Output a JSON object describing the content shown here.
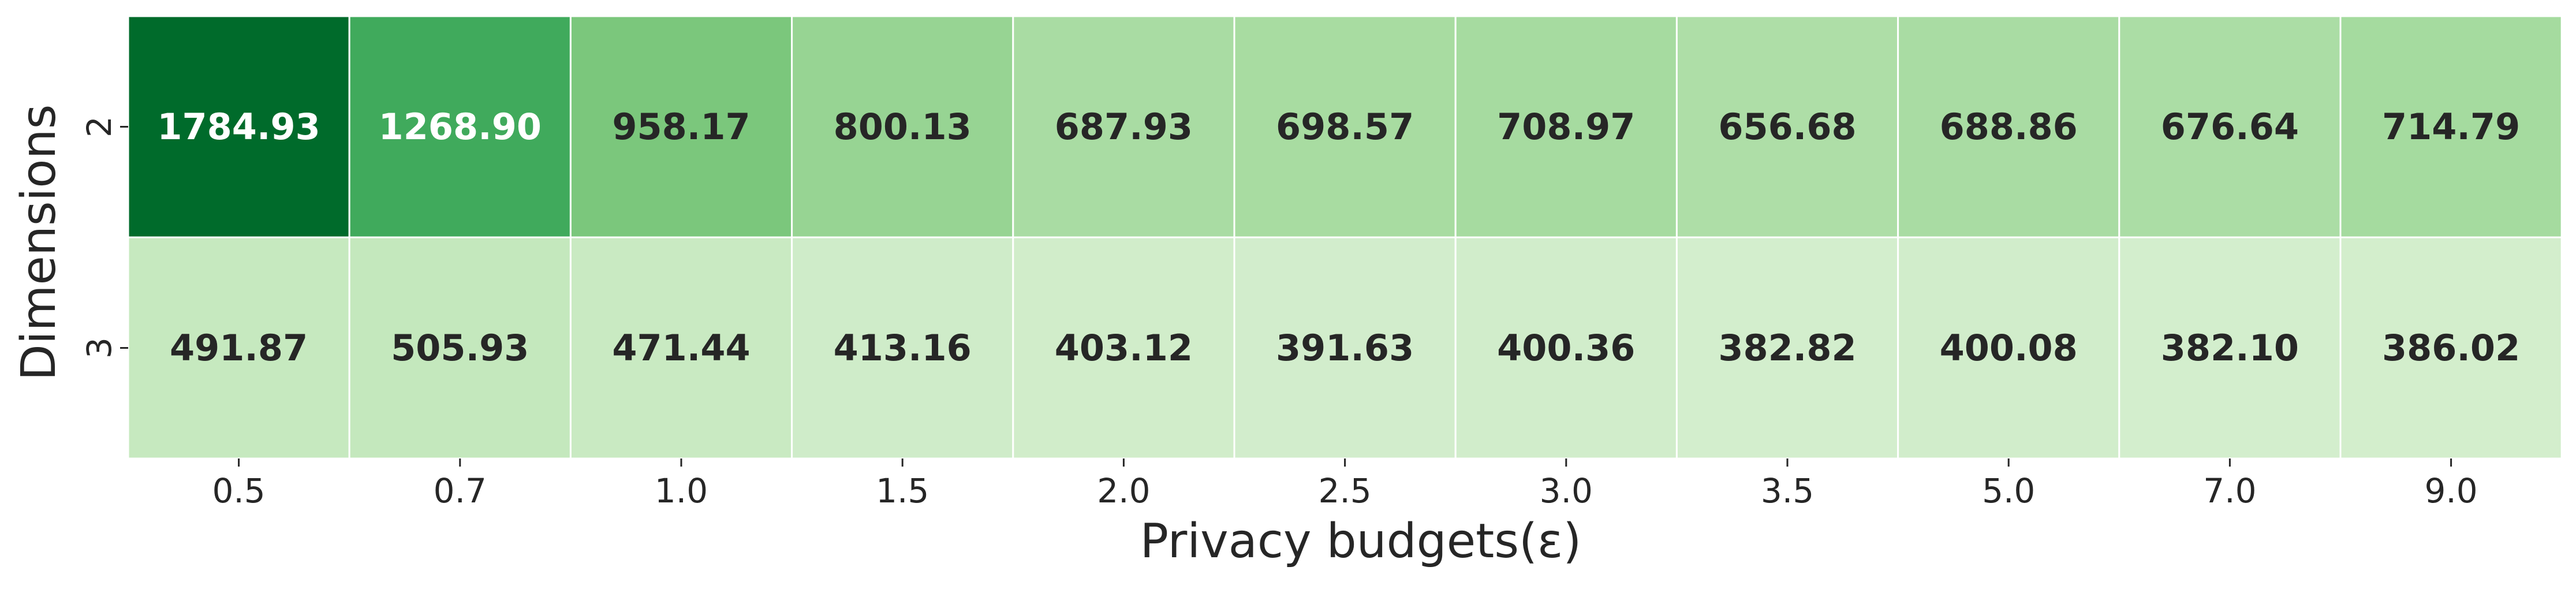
{
  "chart_data": {
    "type": "heatmap",
    "xlabel": "Privacy budgets(ε)",
    "ylabel": "Dimensions",
    "x_categories": [
      "0.5",
      "0.7",
      "1.0",
      "1.5",
      "2.0",
      "2.5",
      "3.0",
      "3.5",
      "5.0",
      "7.0",
      "9.0"
    ],
    "y_categories": [
      "2",
      "3"
    ],
    "values": [
      [
        1784.93,
        1268.9,
        958.17,
        800.13,
        687.93,
        698.57,
        708.97,
        656.68,
        688.86,
        676.64,
        714.79
      ],
      [
        491.87,
        505.93,
        471.44,
        413.16,
        403.12,
        391.63,
        400.36,
        382.82,
        400.08,
        382.1,
        386.02
      ]
    ],
    "value_labels": [
      [
        "1784.93",
        "1268.90",
        "958.17",
        "800.13",
        "687.93",
        "698.57",
        "708.97",
        "656.68",
        "688.86",
        "676.64",
        "714.79"
      ],
      [
        "491.87",
        "505.93",
        "471.44",
        "413.16",
        "403.12",
        "391.63",
        "400.36",
        "382.82",
        "400.08",
        "382.10",
        "386.02"
      ]
    ],
    "colormap": "Greens",
    "colorbar": false,
    "grid_line_color": "#ffffff",
    "text_color_dark": "#262626",
    "text_color_light": "#ffffff"
  }
}
